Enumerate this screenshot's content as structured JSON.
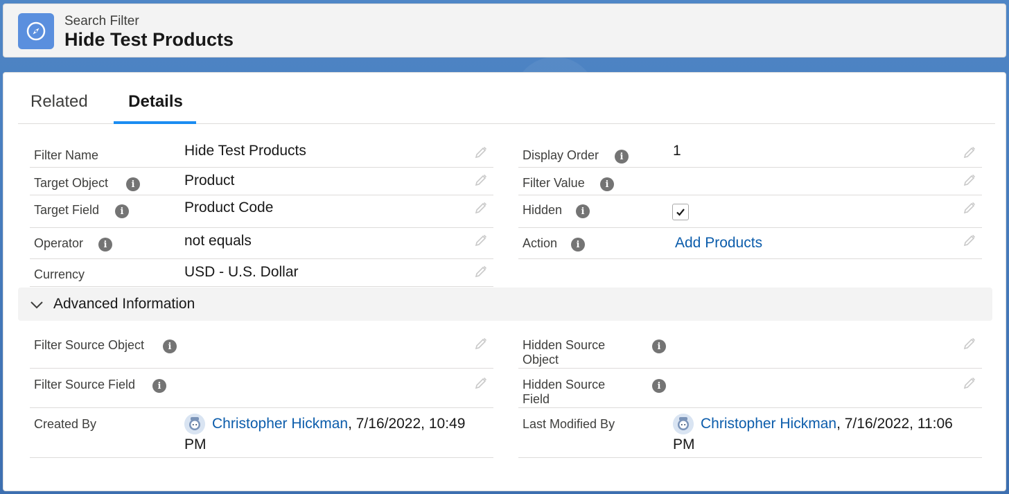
{
  "header": {
    "kicker": "Search Filter",
    "title": "Hide Test Products",
    "icon": "compass-icon",
    "icon_color": "#5a8fde"
  },
  "tabs": [
    {
      "label": "Related",
      "active": false
    },
    {
      "label": "Details",
      "active": true
    }
  ],
  "fields_left": [
    {
      "label": "Filter Name",
      "value": "Hide Test Products"
    },
    {
      "label": "Target Object",
      "value": "Product"
    },
    {
      "label": "Target Field",
      "value": "Product Code"
    },
    {
      "label": "Operator",
      "value": "not equals"
    },
    {
      "label": "Currency",
      "value": "USD - U.S. Dollar"
    }
  ],
  "fields_right": [
    {
      "label": "Display Order",
      "value": "1"
    },
    {
      "label": "Filter Value",
      "value": ""
    },
    {
      "label": "Hidden",
      "checked": true
    },
    {
      "label": "Action",
      "value": "Add Products"
    }
  ],
  "advanced": {
    "title": "Advanced Information",
    "left": [
      {
        "label": "Filter Source Object",
        "value": ""
      },
      {
        "label": "Filter Source Field",
        "value": ""
      },
      {
        "label": "Created By",
        "user": "Christopher Hickman",
        "date": ", 7/16/2022, 10:49",
        "date_cont": "PM"
      }
    ],
    "right": [
      {
        "label": "Hidden Source",
        "label2": "Object",
        "value": ""
      },
      {
        "label": "Hidden Source",
        "label2": "Field",
        "value": ""
      },
      {
        "label": "Last Modified By",
        "user": "Christopher Hickman",
        "date": ", 7/16/2022, 11:06",
        "date_cont": "PM"
      }
    ]
  },
  "colors": {
    "accent": "#1b8cf2",
    "link": "#0b5cab",
    "background": "#3e72b3"
  }
}
